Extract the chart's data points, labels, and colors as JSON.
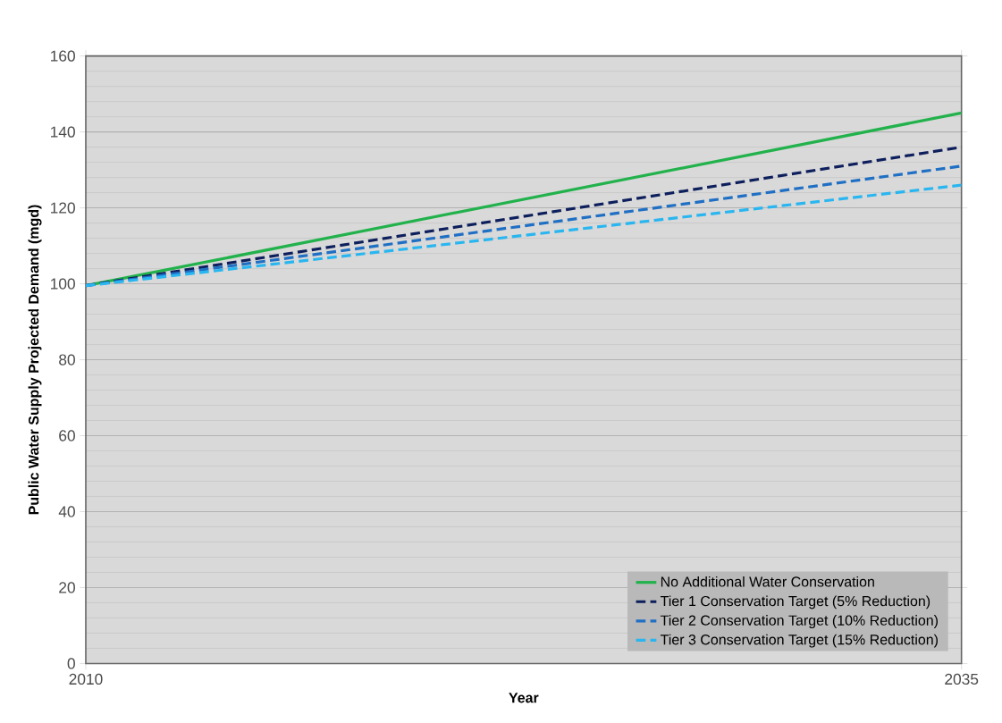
{
  "chart_data": {
    "type": "line",
    "xlabel": "Year",
    "ylabel": "Public Water Supply Projected Demand (mgd)",
    "x": [
      2010,
      2035
    ],
    "series": [
      {
        "name": "No Additional Water Conservation",
        "color": "#22b24c",
        "values": [
          99.5,
          145
        ],
        "line_style": "solid"
      },
      {
        "name": "Tier 1 Conservation Target (5% Reduction)",
        "color": "#0d1f5c",
        "values": [
          99.5,
          136
        ],
        "line_style": "dashed"
      },
      {
        "name": "Tier 2 Conservation Target (10% Reduction)",
        "color": "#1f6fc4",
        "values": [
          99.5,
          131
        ],
        "line_style": "dashed"
      },
      {
        "name": "Tier 3 Conservation Target (15% Reduction)",
        "color": "#29b6f0",
        "values": [
          99.5,
          126
        ],
        "line_style": "dashed"
      }
    ],
    "xlim": [
      2010,
      2035
    ],
    "xticks": [
      2010,
      2035
    ],
    "ylim": [
      0,
      160
    ],
    "yticks": [
      0,
      20,
      40,
      60,
      80,
      100,
      120,
      140,
      160
    ],
    "grid": "y",
    "legend": "bottom right",
    "marker": "none"
  }
}
